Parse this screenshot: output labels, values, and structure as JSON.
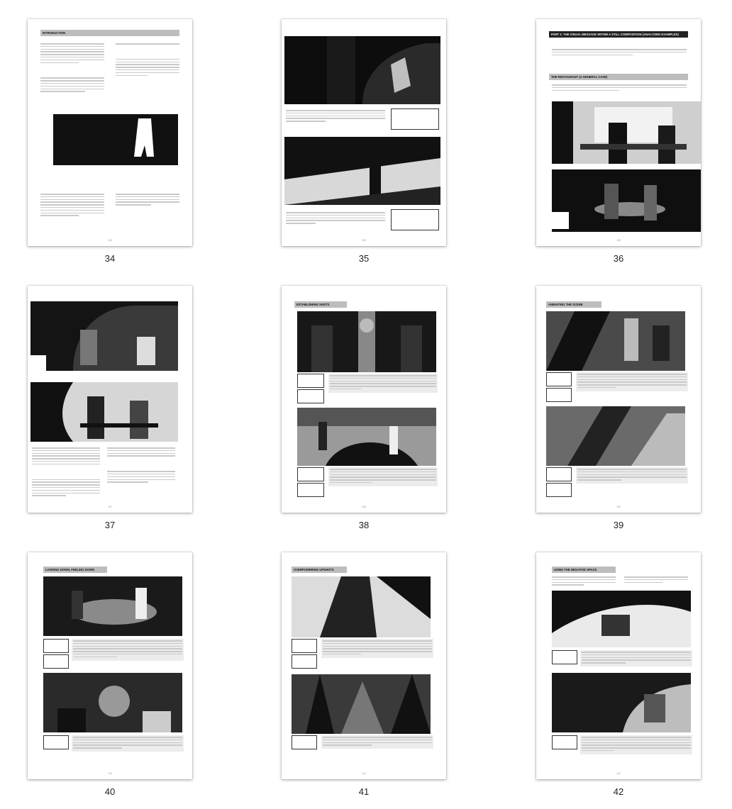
{
  "pages": [
    {
      "number": "34",
      "header": "INTRODUCTION",
      "folio": "134"
    },
    {
      "number": "35",
      "header": "",
      "folio": "135"
    },
    {
      "number": "36",
      "header": "PART 1: THE VISUAL MESSAGE WITHIN A STILL COMPOSITION (ANALYZING EXAMPLES)",
      "subheader": "THE RESTAURANT (A GENERAL CASE)",
      "folio": "136"
    },
    {
      "number": "37",
      "header": "",
      "folio": "137"
    },
    {
      "number": "38",
      "header": "ESTABLISHING SHOTS",
      "folio": "138"
    },
    {
      "number": "39",
      "header": "ANIMATING THE SCENE",
      "folio": "139"
    },
    {
      "number": "40",
      "header": "LOOKING DOWN, FEELING DOWN",
      "folio": "140"
    },
    {
      "number": "41",
      "header": "OVERPOWERING UPSHOTS",
      "folio": "141"
    },
    {
      "number": "42",
      "header": "USING THE NEGATIVE SPACE",
      "folio": "142"
    }
  ]
}
